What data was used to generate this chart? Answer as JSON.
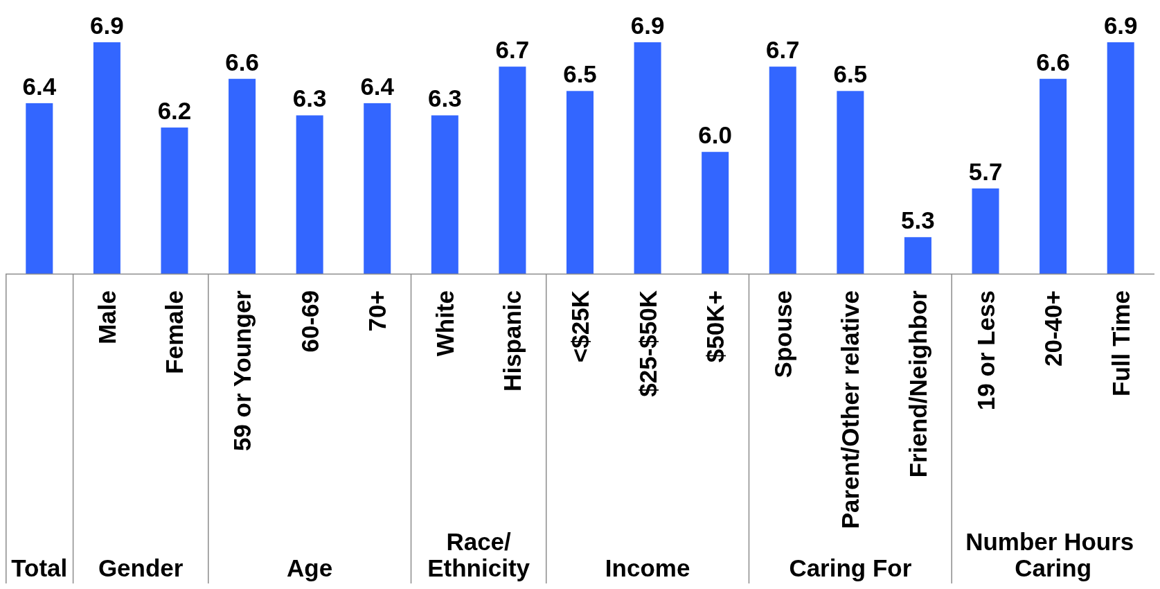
{
  "chart_data": {
    "type": "bar",
    "categories": [
      null,
      "Male",
      "Female",
      "59 or Younger",
      "60-69",
      "70+",
      "White",
      "Hispanic",
      "<$25K",
      "$25-$50K",
      "$50K+",
      "Spouse",
      "Parent/Other relative",
      "Friend/Neighbor",
      "19 or Less",
      "20-40+",
      "Full Time"
    ],
    "values": [
      6.4,
      6.9,
      6.2,
      6.6,
      6.3,
      6.4,
      6.3,
      6.7,
      6.5,
      6.9,
      6.0,
      6.7,
      6.5,
      5.3,
      5.7,
      6.6,
      6.9
    ],
    "value_labels": [
      "6.4",
      "6.9",
      "6.2",
      "6.6",
      "6.3",
      "6.4",
      "6.3",
      "6.7",
      "6.5",
      "6.9",
      "6.0",
      "6.7",
      "6.5",
      "5.3",
      "5.7",
      "6.6",
      "6.9"
    ],
    "color": "#3366ff",
    "ylim": [
      5,
      6.9
    ],
    "tick_labels": "x",
    "annotations": [
      "Total",
      "Gender",
      "Age",
      "Race/Ethnicity",
      "Income",
      "Caring For",
      "Number Hours Caring"
    ]
  }
}
